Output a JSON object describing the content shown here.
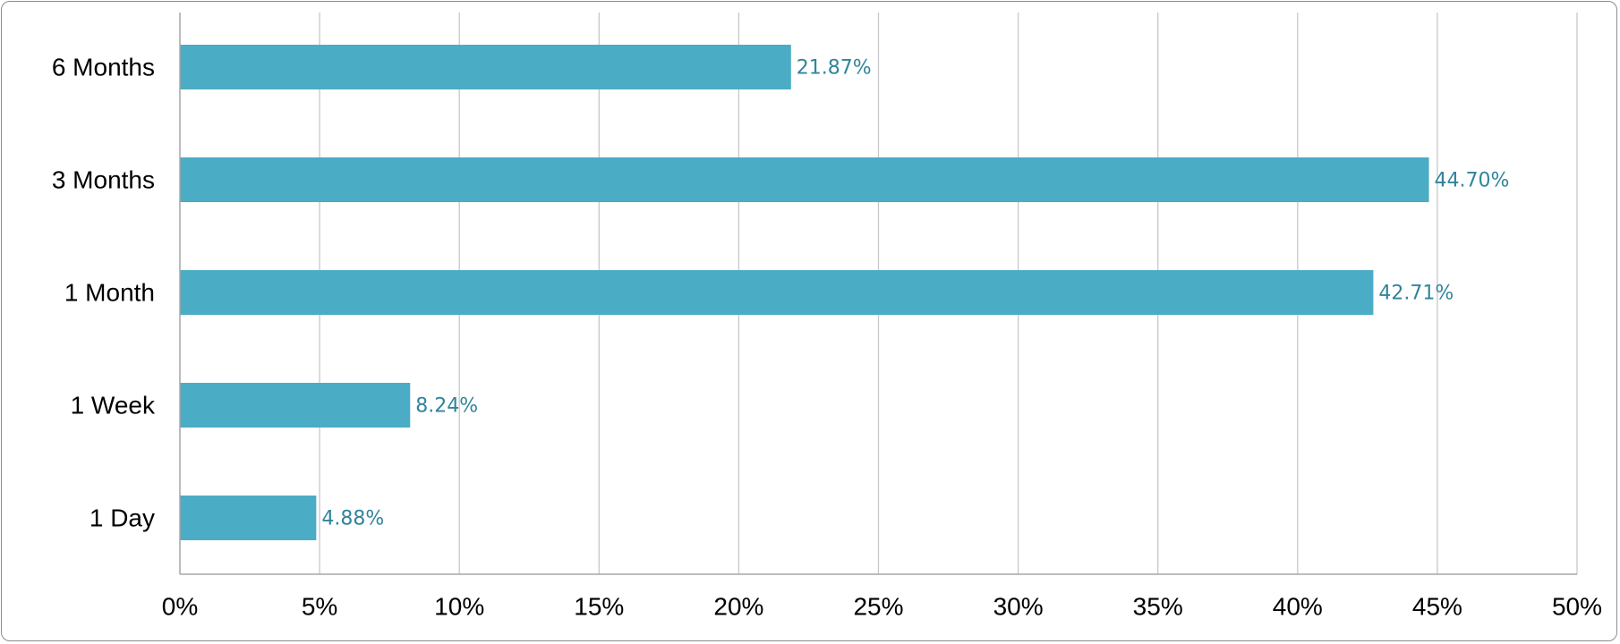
{
  "chart_data": {
    "type": "bar",
    "orientation": "horizontal",
    "categories": [
      "6 Months",
      "3 Months",
      "1 Month",
      "1 Week",
      "1 Day"
    ],
    "values": [
      21.87,
      44.7,
      42.71,
      8.24,
      4.88
    ],
    "data_labels": [
      "21.87%",
      "44.70%",
      "42.71%",
      "8.24%",
      "4.88%"
    ],
    "x_ticks": [
      0,
      5,
      10,
      15,
      20,
      25,
      30,
      35,
      40,
      45,
      50
    ],
    "x_tick_labels": [
      "0%",
      "5%",
      "10%",
      "15%",
      "20%",
      "25%",
      "30%",
      "35%",
      "40%",
      "45%",
      "50%"
    ],
    "xlim": [
      0,
      50
    ],
    "grid": "vertical",
    "legend": "none",
    "colors": {
      "bar": "#4bacc6",
      "data_label": "#31849b",
      "grid": "#c8c8c8",
      "axis": "#a6a6a6"
    }
  }
}
